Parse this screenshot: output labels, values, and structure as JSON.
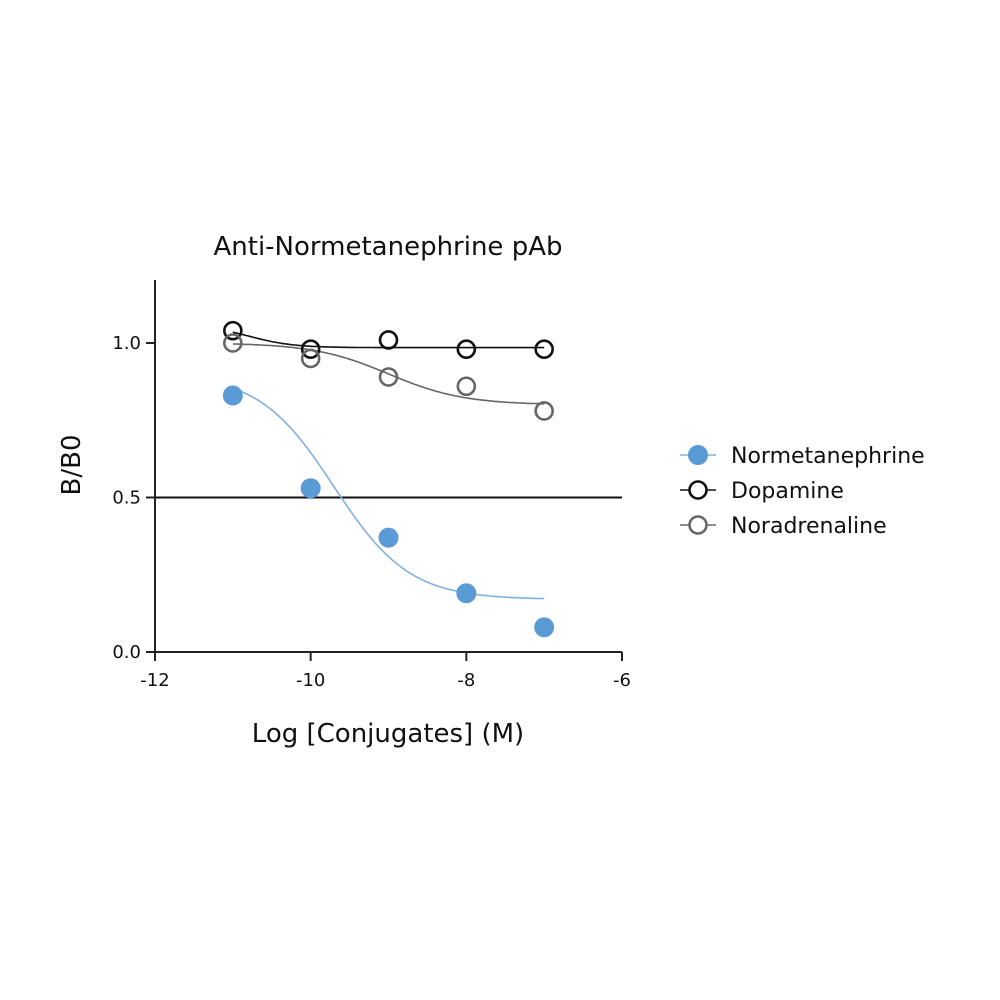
{
  "chart_data": {
    "type": "scatter",
    "title": "Anti-Normetanephrine pAb",
    "xlabel": "Log [Conjugates] (M)",
    "ylabel": "B/B0",
    "xlim": [
      -12,
      -6
    ],
    "ylim": [
      0,
      1.2
    ],
    "x_ticks": [
      "-12",
      "-10",
      "-8",
      "-6"
    ],
    "y_ticks": [
      "0.0",
      "0.5",
      "1.0"
    ],
    "reference_line_y": 0.5,
    "legend_position": "right",
    "series": [
      {
        "name": "Normetanephrine",
        "marker": "filled-circle",
        "color": "#5b9bd5",
        "x": [
          -11,
          -10,
          -9,
          -8,
          -7
        ],
        "y": [
          0.83,
          0.53,
          0.37,
          0.19,
          0.08
        ],
        "fit": {
          "top": 0.9,
          "bottom": 0.17,
          "log_ic50": -9.7,
          "hill": 0.9
        }
      },
      {
        "name": "Dopamine",
        "marker": "open-circle",
        "color": "#111111",
        "x": [
          -11,
          -10,
          -9,
          -8,
          -7
        ],
        "y": [
          1.04,
          0.98,
          1.01,
          0.98,
          0.98
        ],
        "fit": {
          "top": 1.06,
          "bottom": 0.985,
          "log_ic50": -10.8,
          "hill": 1.5
        }
      },
      {
        "name": "Noradrenaline",
        "marker": "open-circle",
        "color": "#666666",
        "x": [
          -11,
          -10,
          -9,
          -8,
          -7
        ],
        "y": [
          1.0,
          0.95,
          0.89,
          0.86,
          0.78
        ],
        "fit": {
          "top": 1.0,
          "bottom": 0.8,
          "log_ic50": -9.0,
          "hill": 0.9
        }
      }
    ]
  }
}
